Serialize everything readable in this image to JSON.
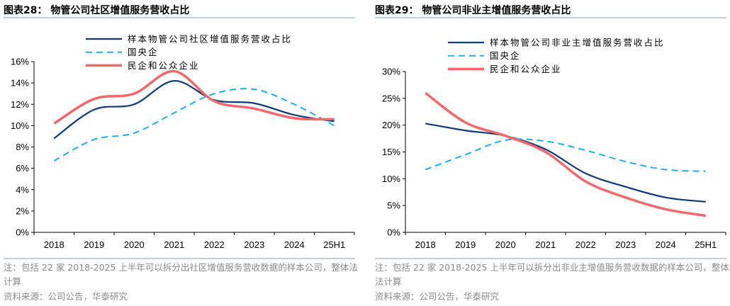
{
  "chart_data": [
    {
      "type": "line",
      "title": "图表28： 物管公司社区增值服务营收占比",
      "categories": [
        "2018",
        "2019",
        "2020",
        "2021",
        "2022",
        "2023",
        "2024",
        "25H1"
      ],
      "ylim": [
        0,
        16
      ],
      "yticks": [
        0,
        2,
        4,
        6,
        8,
        10,
        12,
        14,
        16
      ],
      "yunit": "%",
      "grid": false,
      "legend": "top-center",
      "series": [
        {
          "name": "样本物管公司社区增值服务营收占比",
          "color": "#0d3a7a",
          "style": "solid",
          "values": [
            8.8,
            11.5,
            12.0,
            14.2,
            12.4,
            12.1,
            11.0,
            10.4
          ]
        },
        {
          "name": "国央企",
          "color": "#1ab0f0",
          "style": "dashed",
          "values": [
            6.7,
            8.7,
            9.3,
            11.2,
            13.0,
            13.4,
            12.0,
            10.0
          ]
        },
        {
          "name": "民企和公众企业",
          "color": "#f4676b",
          "style": "thick",
          "values": [
            10.2,
            12.5,
            13.0,
            15.1,
            12.3,
            11.6,
            10.7,
            10.6
          ]
        }
      ],
      "note": "注：包括 22 家 2018-2025 上半年可以拆分出社区增值服务营收数据的样本公司，整体法计算",
      "source": "资料来源：公司公告，华泰研究"
    },
    {
      "type": "line",
      "title": "图表29： 物管公司非业主增值服务营收占比",
      "categories": [
        "2018",
        "2019",
        "2020",
        "2021",
        "2022",
        "2023",
        "2024",
        "25H1"
      ],
      "ylim": [
        0,
        30
      ],
      "yticks": [
        0,
        5,
        10,
        15,
        20,
        25,
        30
      ],
      "yunit": "%",
      "grid": false,
      "legend": "top-center",
      "series": [
        {
          "name": "样本物管公司非业主增值服务营收占比",
          "color": "#0d3a7a",
          "style": "solid",
          "values": [
            20.3,
            19.0,
            18.0,
            15.5,
            11.0,
            8.5,
            6.5,
            5.7
          ]
        },
        {
          "name": "国央企",
          "color": "#1ab0f0",
          "style": "dashed",
          "values": [
            11.7,
            14.5,
            17.2,
            17.0,
            15.3,
            13.2,
            11.7,
            11.4
          ]
        },
        {
          "name": "民企和公众企业",
          "color": "#f4676b",
          "style": "thick",
          "values": [
            26.0,
            20.5,
            18.0,
            15.0,
            9.5,
            6.5,
            4.3,
            3.1
          ]
        }
      ],
      "note": "注：包括 22 家 2018-2025 上半年可以拆分出非业主增值服务营收数据的样本公司，整体法计算",
      "source": "资料来源：公司公告，华泰研究"
    }
  ]
}
